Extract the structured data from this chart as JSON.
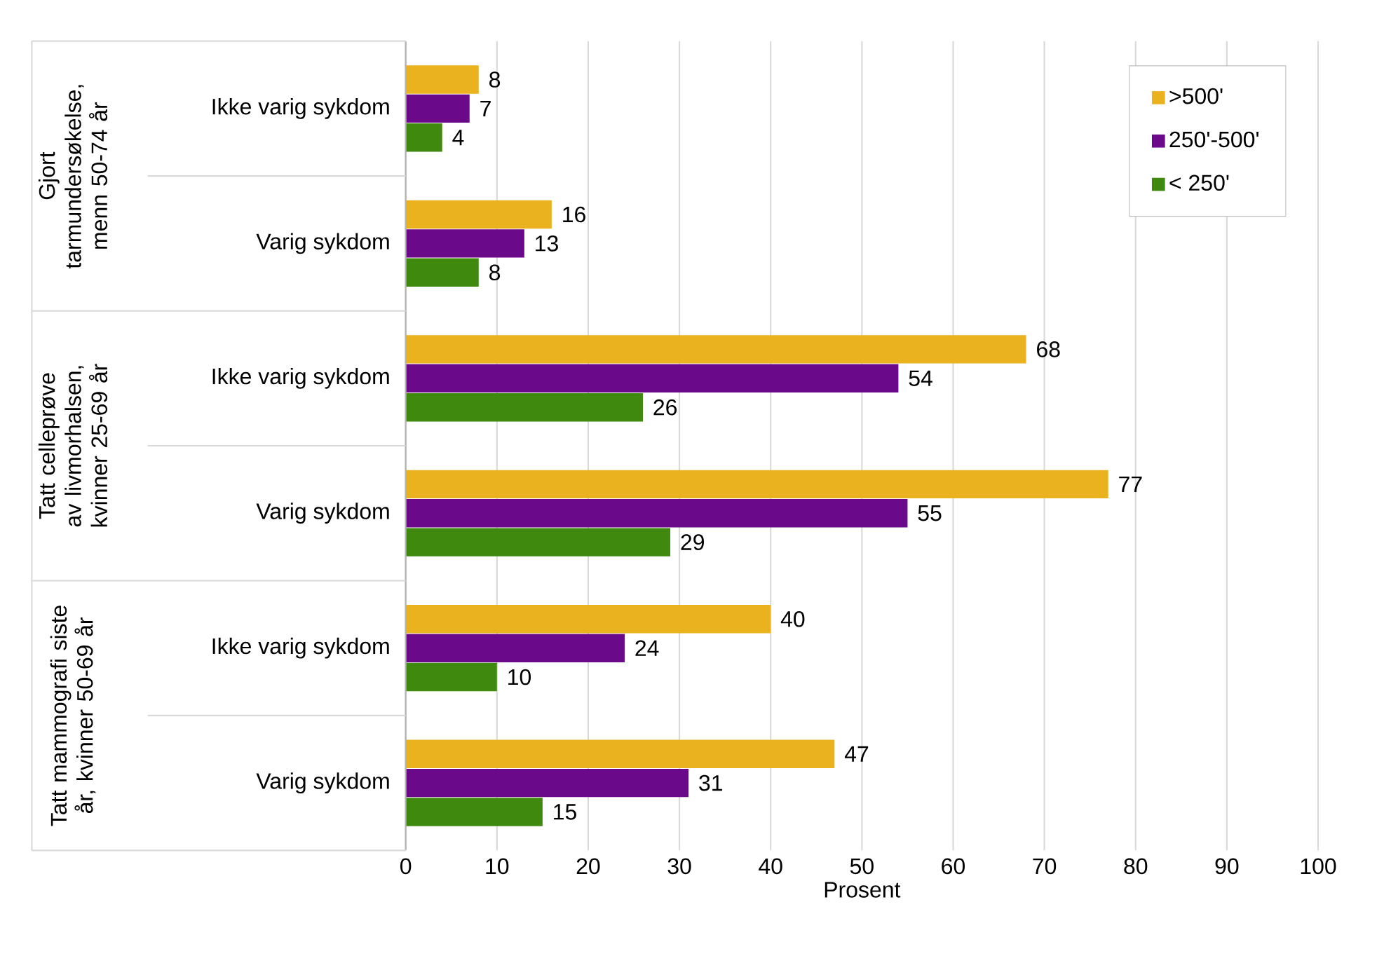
{
  "chart_data": {
    "type": "bar",
    "orientation": "horizontal",
    "categories": [
      "Ikke varig sykdom",
      "Varig sykdom",
      "Ikke varig sykdom",
      "Varig sykdom",
      "Ikke varig sykdom",
      "Varig sykdom"
    ],
    "annotations": [
      "Gjort tarmundersøkelse, menn 50-74 år",
      "Tatt celleprøve av livmorhalsen, kvinner 25-69 år",
      "Tatt mammografi siste år, kvinner 50-69 år"
    ],
    "series": [
      {
        "name": ">500'",
        "color": "#ebb220",
        "values": [
          8,
          16,
          68,
          77,
          40,
          47
        ]
      },
      {
        "name": "250'-500'",
        "color": "#6a0a8a",
        "values": [
          7,
          13,
          54,
          55,
          24,
          31
        ]
      },
      {
        "name": "< 250'",
        "color": "#3f8a0e",
        "values": [
          4,
          8,
          26,
          29,
          10,
          15
        ]
      }
    ],
    "xlim": [
      0,
      100
    ],
    "xticks": [
      0,
      10,
      20,
      30,
      40,
      50,
      60,
      70,
      80,
      90,
      100
    ],
    "xlabel": "Prosent",
    "grid": "x",
    "legend": "top right",
    "data_labels": true
  }
}
